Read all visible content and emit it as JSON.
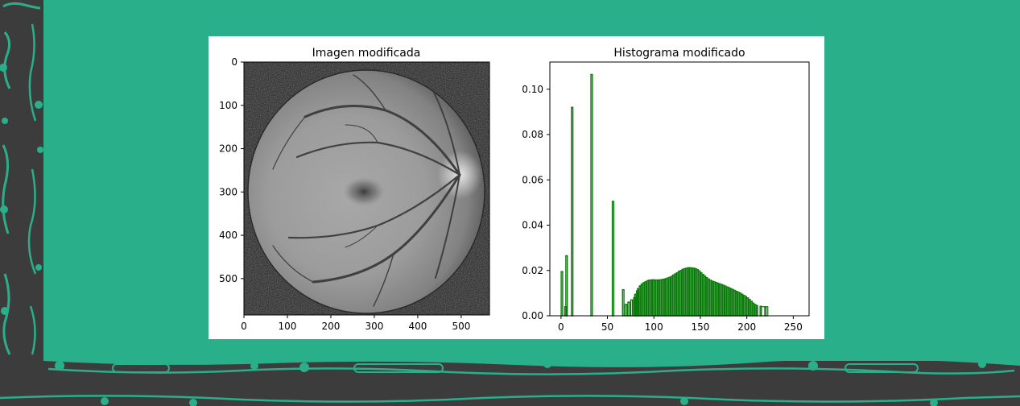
{
  "colors": {
    "slide_background": "#2aaf8b",
    "frame": "#3c3c3c",
    "frame_accent": "#2aaf8b",
    "histogram_bar": "#0a7a0a"
  },
  "chart_data": [
    {
      "type": "image",
      "title": "Imagen modificada",
      "image_description": "grayscale retinal fundus photograph",
      "xlim": [
        0,
        565
      ],
      "ylim": [
        584,
        0
      ],
      "xticks": [
        0,
        100,
        200,
        300,
        400,
        500
      ],
      "yticks": [
        0,
        100,
        200,
        300,
        400,
        500
      ],
      "xtick_labels": [
        "0",
        "100",
        "200",
        "300",
        "400",
        "500"
      ],
      "ytick_labels": [
        "0",
        "100",
        "200",
        "300",
        "400",
        "500"
      ]
    },
    {
      "type": "bar",
      "title": "Histograma modificado",
      "xlim": [
        -12,
        267
      ],
      "ylim": [
        0,
        0.112
      ],
      "xticks": [
        0,
        50,
        100,
        150,
        200,
        250
      ],
      "xtick_labels": [
        "0",
        "50",
        "100",
        "150",
        "200",
        "250"
      ],
      "yticks": [
        0,
        0.02,
        0.04,
        0.06,
        0.08,
        0.1
      ],
      "ytick_labels": [
        "0.00",
        "0.02",
        "0.04",
        "0.06",
        "0.08",
        "0.10"
      ],
      "grid": false,
      "spike_bins": [
        {
          "x": 1,
          "y": 0.0195
        },
        {
          "x": 6,
          "y": 0.0265
        },
        {
          "x": 12,
          "y": 0.092
        },
        {
          "x": 33,
          "y": 0.1065
        },
        {
          "x": 56,
          "y": 0.0505
        },
        {
          "x": 67,
          "y": 0.0115
        }
      ],
      "low_bins": [
        {
          "x": 5,
          "y": 0.004
        },
        {
          "x": 70,
          "y": 0.005
        },
        {
          "x": 73,
          "y": 0.006
        },
        {
          "x": 76,
          "y": 0.007
        }
      ],
      "bins": [
        {
          "x": 79,
          "y": 0.008
        },
        {
          "x": 80,
          "y": 0.0095
        },
        {
          "x": 82,
          "y": 0.011
        },
        {
          "x": 83,
          "y": 0.012
        },
        {
          "x": 85,
          "y": 0.0132
        },
        {
          "x": 87,
          "y": 0.014
        },
        {
          "x": 89,
          "y": 0.0146
        },
        {
          "x": 91,
          "y": 0.015
        },
        {
          "x": 93,
          "y": 0.0155
        },
        {
          "x": 95,
          "y": 0.0157
        },
        {
          "x": 97,
          "y": 0.0158
        },
        {
          "x": 99,
          "y": 0.0159
        },
        {
          "x": 101,
          "y": 0.0158
        },
        {
          "x": 103,
          "y": 0.0158
        },
        {
          "x": 105,
          "y": 0.0158
        },
        {
          "x": 107,
          "y": 0.0159
        },
        {
          "x": 109,
          "y": 0.016
        },
        {
          "x": 111,
          "y": 0.0162
        },
        {
          "x": 113,
          "y": 0.0164
        },
        {
          "x": 115,
          "y": 0.0167
        },
        {
          "x": 117,
          "y": 0.017
        },
        {
          "x": 119,
          "y": 0.0174
        },
        {
          "x": 121,
          "y": 0.018
        },
        {
          "x": 123,
          "y": 0.0185
        },
        {
          "x": 125,
          "y": 0.019
        },
        {
          "x": 127,
          "y": 0.0196
        },
        {
          "x": 129,
          "y": 0.02
        },
        {
          "x": 131,
          "y": 0.0205
        },
        {
          "x": 133,
          "y": 0.0208
        },
        {
          "x": 135,
          "y": 0.021
        },
        {
          "x": 137,
          "y": 0.0212
        },
        {
          "x": 139,
          "y": 0.0212
        },
        {
          "x": 141,
          "y": 0.0211
        },
        {
          "x": 143,
          "y": 0.021
        },
        {
          "x": 145,
          "y": 0.0208
        },
        {
          "x": 147,
          "y": 0.0204
        },
        {
          "x": 149,
          "y": 0.0198
        },
        {
          "x": 151,
          "y": 0.019
        },
        {
          "x": 153,
          "y": 0.0182
        },
        {
          "x": 155,
          "y": 0.0175
        },
        {
          "x": 157,
          "y": 0.0168
        },
        {
          "x": 159,
          "y": 0.0162
        },
        {
          "x": 161,
          "y": 0.0157
        },
        {
          "x": 163,
          "y": 0.0153
        },
        {
          "x": 165,
          "y": 0.015
        },
        {
          "x": 167,
          "y": 0.0147
        },
        {
          "x": 169,
          "y": 0.0144
        },
        {
          "x": 171,
          "y": 0.0141
        },
        {
          "x": 173,
          "y": 0.0138
        },
        {
          "x": 175,
          "y": 0.0135
        },
        {
          "x": 177,
          "y": 0.0131
        },
        {
          "x": 179,
          "y": 0.0127
        },
        {
          "x": 181,
          "y": 0.0124
        },
        {
          "x": 183,
          "y": 0.012
        },
        {
          "x": 185,
          "y": 0.0116
        },
        {
          "x": 187,
          "y": 0.0112
        },
        {
          "x": 189,
          "y": 0.0108
        },
        {
          "x": 191,
          "y": 0.0104
        },
        {
          "x": 193,
          "y": 0.01
        },
        {
          "x": 195,
          "y": 0.0095
        },
        {
          "x": 197,
          "y": 0.009
        },
        {
          "x": 199,
          "y": 0.0085
        },
        {
          "x": 201,
          "y": 0.0079
        },
        {
          "x": 203,
          "y": 0.0072
        },
        {
          "x": 205,
          "y": 0.0064
        },
        {
          "x": 207,
          "y": 0.0056
        },
        {
          "x": 209,
          "y": 0.005
        },
        {
          "x": 211,
          "y": 0.0045
        },
        {
          "x": 215,
          "y": 0.0042
        },
        {
          "x": 220,
          "y": 0.004
        }
      ]
    }
  ]
}
